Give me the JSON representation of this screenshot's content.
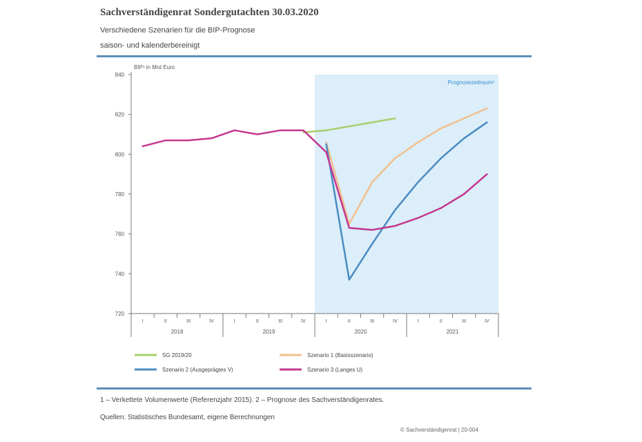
{
  "header": {
    "title": "Sachverständigenrat Sondergutachten 30.03.2020",
    "subtitle1": "Verschiedene Szenarien für die BIP-Prognose",
    "subtitle2": "saison- und kalenderbereinigt"
  },
  "footer": {
    "notes": "1 – Verkettete Volumenwerte (Referenzjahr 2015).  2 – Prognose des Sachverständigenrates.",
    "sources": "Quellen: Statistisches Bundesamt, eigene Berechnungen",
    "credit": "© Sachverständigenrat | 20-004"
  },
  "colors": {
    "green": "#a9cf6a",
    "orange": "#f2bf8d",
    "blue": "#4a8bc2",
    "magenta": "#c4378f",
    "forecast_bg": "#dbeef9",
    "forecast_label": "#3b8fcf",
    "rule": "#5b8db8"
  },
  "chart_data": {
    "type": "line",
    "ylabel": "BIP¹ in Mrd Euro",
    "ylim": [
      720,
      840
    ],
    "yticks": [
      "720",
      "740",
      "760",
      "780",
      "800",
      "820",
      "840"
    ],
    "x": [
      "2018-I",
      "2018-II",
      "2018-III",
      "2018-IV",
      "2019-I",
      "2019-II",
      "2019-III",
      "2019-IV",
      "2020-I",
      "2020-II",
      "2020-III",
      "2020-IV",
      "2021-I",
      "2021-II",
      "2021-III",
      "2021-IV"
    ],
    "xtick_labels": [
      "I",
      "II",
      "III",
      "IV",
      "I",
      "II",
      "III",
      "IV",
      "I",
      "II",
      "III",
      "IV",
      "I",
      "II",
      "III",
      "IV"
    ],
    "year_labels": [
      "2018",
      "2019",
      "2020",
      "2021"
    ],
    "forecast_label": "Prognosezeitraum²",
    "forecast_start": "2019-IV",
    "series": [
      {
        "name": "SG 2019/20",
        "color_key": "green",
        "x": [
          "2019-IV",
          "2020-I",
          "2020-II",
          "2020-III",
          "2020-IV"
        ],
        "values": [
          811,
          812,
          814,
          816,
          818
        ]
      },
      {
        "name": "Szenario 1 (Basisszenario)",
        "color_key": "orange",
        "x": [
          "2020-I",
          "2020-II",
          "2020-III",
          "2020-IV",
          "2021-I",
          "2021-II",
          "2021-III",
          "2021-IV"
        ],
        "values": [
          806,
          765,
          786,
          798,
          806,
          813,
          818,
          823
        ]
      },
      {
        "name": "Szenario 2 (Ausgeprägtes V)",
        "color_key": "blue",
        "x": [
          "2020-I",
          "2020-II",
          "2020-III",
          "2020-IV",
          "2021-I",
          "2021-II",
          "2021-III",
          "2021-IV"
        ],
        "values": [
          805,
          737,
          755,
          772,
          786,
          798,
          808,
          816
        ]
      },
      {
        "name": "Szenario 3 (Langes U)",
        "color_key": "magenta",
        "x": [
          "2018-I",
          "2018-II",
          "2018-III",
          "2018-IV",
          "2019-I",
          "2019-II",
          "2019-III",
          "2019-IV",
          "2020-I",
          "2020-II",
          "2020-III",
          "2020-IV",
          "2021-I",
          "2021-II",
          "2021-III",
          "2021-IV"
        ],
        "values": [
          804,
          807,
          807,
          808,
          812,
          810,
          812,
          812,
          801,
          763,
          762,
          764,
          768,
          773,
          780,
          790
        ]
      }
    ],
    "legend_placement": "bottom"
  }
}
